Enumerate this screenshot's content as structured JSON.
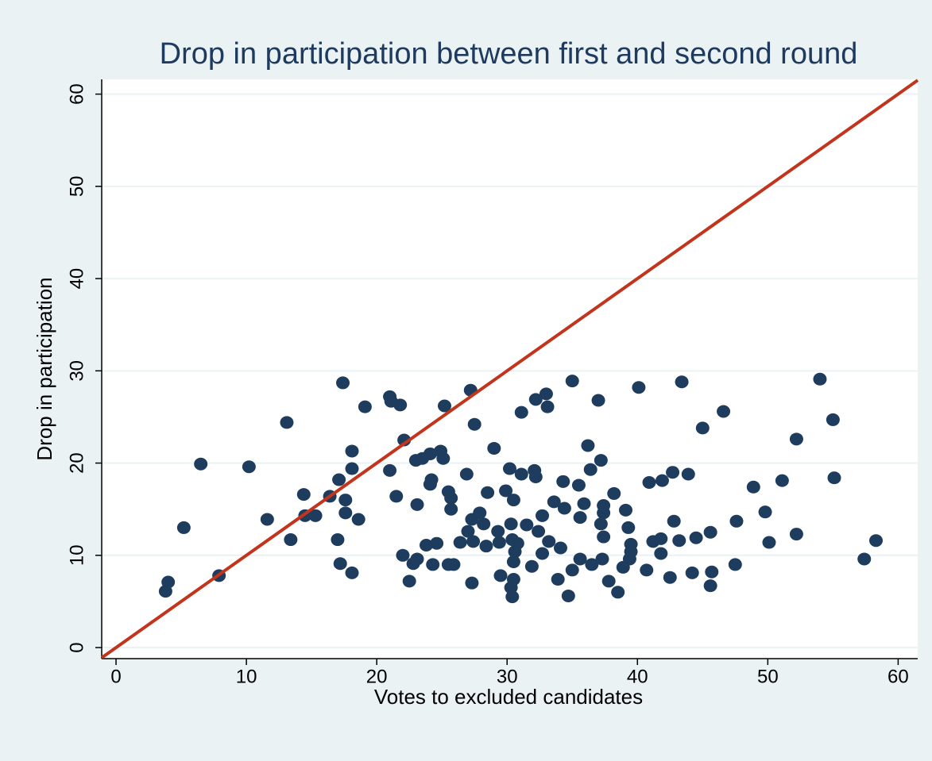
{
  "chart_data": {
    "type": "scatter",
    "title": "Drop in participation between first and second round",
    "x_label": "Votes to excluded candidates",
    "y_label": "Drop in participation",
    "x": [
      3.8,
      4.0,
      5.2,
      6.5,
      7.9,
      10.2,
      11.6,
      13.1,
      13.4,
      14.4,
      14.5,
      15.3,
      16.4,
      17.1,
      17.0,
      17.2,
      17.4,
      17.6,
      17.6,
      18.1,
      18.1,
      18.1,
      19.1,
      18.6,
      21.0,
      21.1,
      21.0,
      21.5,
      21.8,
      22.1,
      22.0,
      22.5,
      22.8,
      23.0,
      23.1,
      23.1,
      23.5,
      23.8,
      24.1,
      24.2,
      24.1,
      24.3,
      24.6,
      24.9,
      25.1,
      25.2,
      25.5,
      25.7,
      25.7,
      25.5,
      25.9,
      26.4,
      26.9,
      27.0,
      27.2,
      27.3,
      27.3,
      27.5,
      27.4,
      27.9,
      28.2,
      28.4,
      28.5,
      29.0,
      29.3,
      29.5,
      29.4,
      29.9,
      30.2,
      30.3,
      30.3,
      30.4,
      30.5,
      30.4,
      30.6,
      30.5,
      30.5,
      30.8,
      31.1,
      31.1,
      31.5,
      31.9,
      32.1,
      32.2,
      32.2,
      32.4,
      32.7,
      32.7,
      33.0,
      33.1,
      33.2,
      33.6,
      33.9,
      34.1,
      34.4,
      34.3,
      34.7,
      35.0,
      35.0,
      35.5,
      35.6,
      35.6,
      35.9,
      36.2,
      36.4,
      36.5,
      37.0,
      37.2,
      37.2,
      37.3,
      37.4,
      37.4,
      37.4,
      37.8,
      38.2,
      38.5,
      38.9,
      39.1,
      39.3,
      39.4,
      39.5,
      39.5,
      40.1,
      40.7,
      40.9,
      41.2,
      41.8,
      41.8,
      41.9,
      42.5,
      42.7,
      42.8,
      43.2,
      43.4,
      43.9,
      44.2,
      44.5,
      45.0,
      45.6,
      45.6,
      45.7,
      46.6,
      47.5,
      47.6,
      48.9,
      49.8,
      50.1,
      51.1,
      52.2,
      52.2,
      54.0,
      55.0,
      55.1,
      57.4,
      58.3
    ],
    "values": [
      6.1,
      7.1,
      13.0,
      19.9,
      7.8,
      19.6,
      13.9,
      24.4,
      11.7,
      16.6,
      14.3,
      14.3,
      16.4,
      18.2,
      11.7,
      9.1,
      28.7,
      16.0,
      14.6,
      8.1,
      21.3,
      19.4,
      26.1,
      13.9,
      27.2,
      26.7,
      19.2,
      16.4,
      26.3,
      22.5,
      10.0,
      7.2,
      9.1,
      20.3,
      15.5,
      9.6,
      20.5,
      11.1,
      21.0,
      18.2,
      17.7,
      9.0,
      11.3,
      21.3,
      20.5,
      26.2,
      16.9,
      15.0,
      16.2,
      9.0,
      9.0,
      11.4,
      18.8,
      12.6,
      27.9,
      7.0,
      13.9,
      24.2,
      11.5,
      14.6,
      13.4,
      11.0,
      16.8,
      21.6,
      12.6,
      7.8,
      11.4,
      17.0,
      19.4,
      13.4,
      6.5,
      5.5,
      16.0,
      11.7,
      10.4,
      9.3,
      7.4,
      11.3,
      25.5,
      18.8,
      13.3,
      8.8,
      19.2,
      18.5,
      26.9,
      12.6,
      14.3,
      10.2,
      27.5,
      26.1,
      11.5,
      15.8,
      7.4,
      10.8,
      15.1,
      18.0,
      5.6,
      28.9,
      8.4,
      17.6,
      9.6,
      14.1,
      15.6,
      21.9,
      19.3,
      9.0,
      26.8,
      20.3,
      13.4,
      9.6,
      12.0,
      15.4,
      14.6,
      7.2,
      16.7,
      6.0,
      8.7,
      14.9,
      13.0,
      9.6,
      11.2,
      10.4,
      28.2,
      8.4,
      17.9,
      11.5,
      10.2,
      11.8,
      18.1,
      7.6,
      19.0,
      13.7,
      11.6,
      28.8,
      18.8,
      8.1,
      11.9,
      23.8,
      12.5,
      6.7,
      8.2,
      25.6,
      9.0,
      13.7,
      17.4,
      14.7,
      11.4,
      18.1,
      22.6,
      12.3,
      29.1,
      24.7,
      18.4,
      9.6,
      11.6
    ],
    "color": "#1e3c5e",
    "reference_line": {
      "x": [
        -1.1,
        61.5
      ],
      "y": [
        -1.1,
        61.5
      ],
      "color": "#c2341b"
    },
    "xlim": [
      -1.1,
      61.5
    ],
    "ylim": [
      -1.2,
      61.6
    ],
    "xticks": [
      0,
      10,
      20,
      30,
      40,
      50,
      60
    ],
    "yticks": [
      0,
      10,
      20,
      30,
      40,
      50,
      60
    ],
    "grid": true
  }
}
